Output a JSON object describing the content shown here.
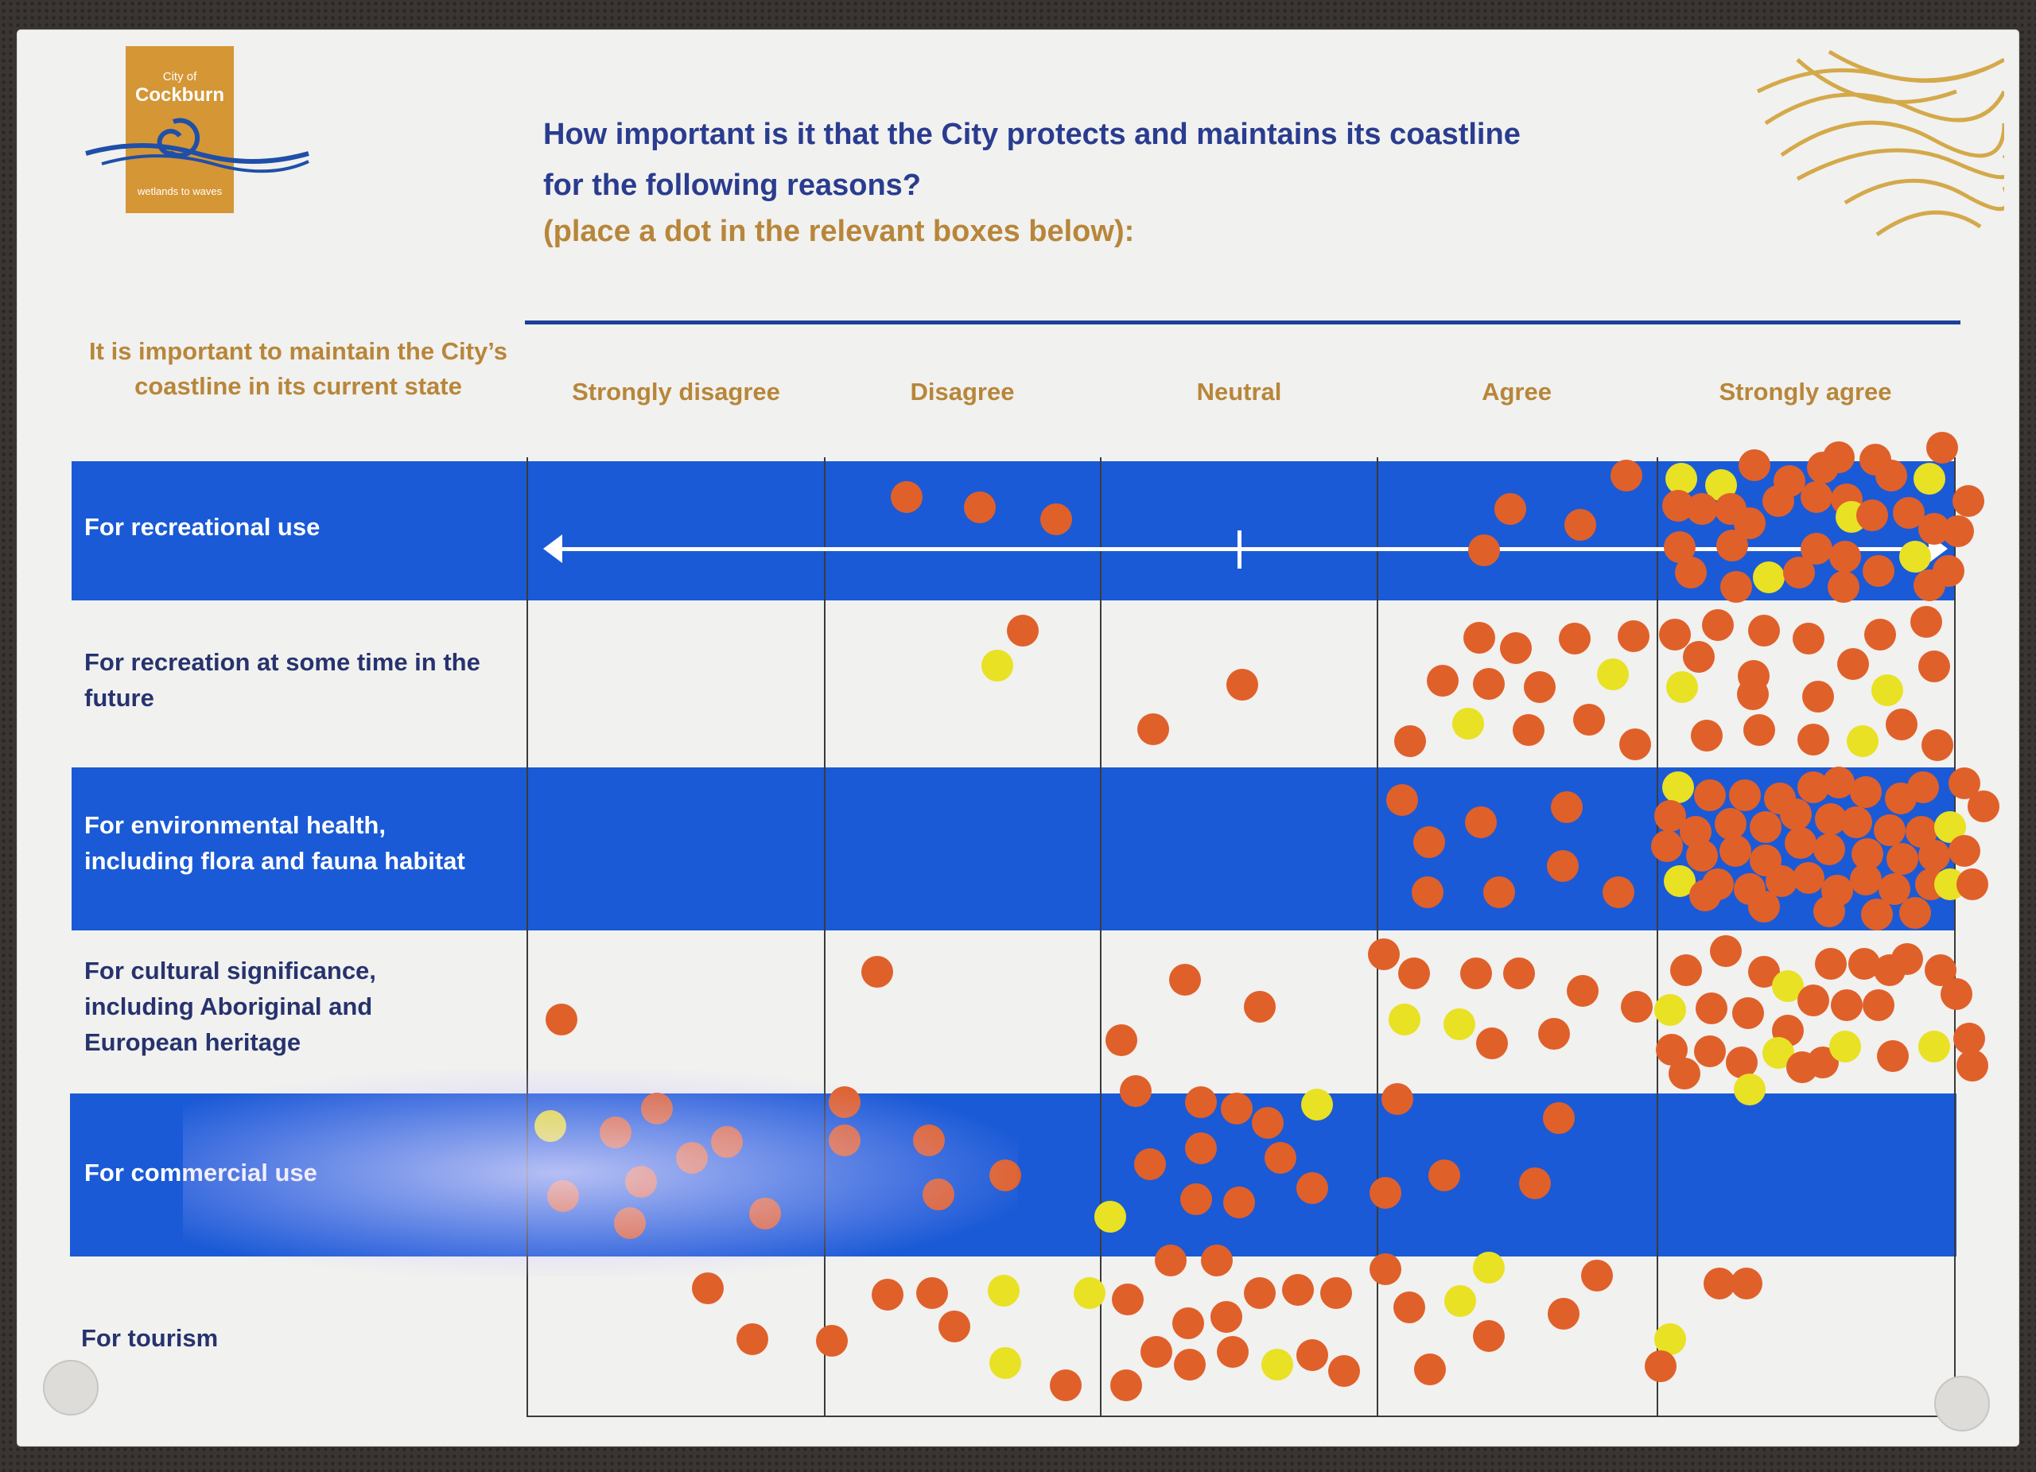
{
  "logo": {
    "city": "City of",
    "name": "Cockburn",
    "tagline": "wetlands to waves"
  },
  "question": {
    "line1": "How important is it that the City protects and maintains its coastline",
    "line2": "for the following reasons?",
    "instruction": "(place a dot in the relevant boxes below):"
  },
  "row_header_title": "It is important to maintain the City’s coastline in its current state",
  "columns": [
    "Strongly disagree",
    "Disagree",
    "Neutral",
    "Agree",
    "Strongly agree"
  ],
  "rows": [
    {
      "line1": "For recreational use",
      "line2": "",
      "line3": ""
    },
    {
      "line1": "For recreation at some time in the",
      "line2": "future",
      "line3": ""
    },
    {
      "line1": "For environmental health,",
      "line2": "including flora and fauna habitat",
      "line3": ""
    },
    {
      "line1": "For cultural significance,",
      "line2": "including Aboriginal and",
      "line3": "European heritage"
    },
    {
      "line1": "For commercial use",
      "line2": "",
      "line3": ""
    },
    {
      "line1": "For tourism",
      "line2": "",
      "line3": ""
    }
  ],
  "colors": {
    "band_blue": "#1a5ad6",
    "dot_orange": "#e0602a",
    "dot_yellow": "#e9e123",
    "gold": "#b8863a",
    "title_blue": "#2a3c8f"
  },
  "dot_counts_approx": {
    "For recreational use": [
      0,
      3,
      0,
      4,
      40
    ],
    "For recreation at some time in the future": [
      0,
      2,
      2,
      14,
      24
    ],
    "For environmental health, including flora and fauna habitat": [
      0,
      0,
      0,
      8,
      55
    ],
    "For cultural significance, including Aboriginal and European heritage": [
      1,
      1,
      3,
      13,
      25
    ],
    "For commercial use": [
      8,
      6,
      14,
      5,
      0
    ],
    "For tourism": [
      2,
      8,
      15,
      8,
      3
    ]
  }
}
